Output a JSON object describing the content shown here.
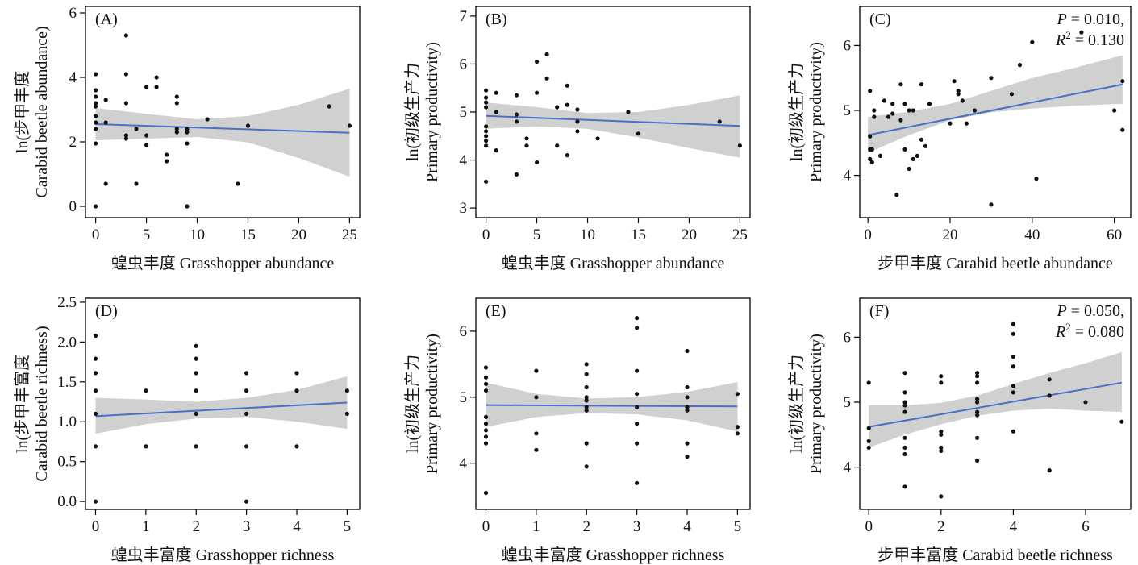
{
  "chart_data": [
    {
      "type": "scatter",
      "panel": "(A)",
      "xlabel": "蝗虫丰度 Grasshopper abundance",
      "ylabel": [
        "ln(步甲丰度",
        "Carabid beetle abundance)"
      ],
      "xlim": [
        -1.0,
        26.0
      ],
      "ylim": [
        -0.35,
        6.2
      ],
      "xticks": [
        0,
        5,
        10,
        15,
        20,
        25
      ],
      "yticks": [
        0,
        2,
        4,
        6
      ],
      "fit": {
        "x": [
          0,
          25
        ],
        "y": [
          2.55,
          2.28
        ]
      },
      "band": {
        "x": [
          0,
          5,
          10,
          15,
          20,
          25
        ],
        "lower": [
          2.05,
          2.1,
          2.15,
          1.98,
          1.5,
          0.92
        ],
        "upper": [
          3.05,
          2.87,
          2.7,
          2.8,
          3.15,
          3.65
        ]
      },
      "stat": null,
      "points": [
        [
          0,
          4.1
        ],
        [
          0,
          3.6
        ],
        [
          0,
          3.4
        ],
        [
          0,
          3.2
        ],
        [
          0,
          3.1
        ],
        [
          0,
          2.8
        ],
        [
          0,
          2.6
        ],
        [
          0,
          2.4
        ],
        [
          0,
          1.95
        ],
        [
          0,
          0.0
        ],
        [
          1,
          3.3
        ],
        [
          1,
          2.6
        ],
        [
          1,
          0.7
        ],
        [
          3,
          5.3
        ],
        [
          3,
          4.1
        ],
        [
          3,
          3.2
        ],
        [
          3,
          2.2
        ],
        [
          3,
          2.1
        ],
        [
          4,
          2.4
        ],
        [
          4,
          0.7
        ],
        [
          5,
          3.7
        ],
        [
          5,
          2.2
        ],
        [
          5,
          1.9
        ],
        [
          6,
          4.0
        ],
        [
          6,
          3.7
        ],
        [
          7,
          1.6
        ],
        [
          7,
          1.4
        ],
        [
          8,
          3.4
        ],
        [
          8,
          3.2
        ],
        [
          8,
          2.4
        ],
        [
          8,
          2.3
        ],
        [
          9,
          2.4
        ],
        [
          9,
          2.3
        ],
        [
          9,
          1.95
        ],
        [
          9,
          0.0
        ],
        [
          11,
          2.7
        ],
        [
          14,
          0.7
        ],
        [
          15,
          2.5
        ],
        [
          23,
          3.1
        ],
        [
          25,
          2.5
        ]
      ]
    },
    {
      "type": "scatter",
      "panel": "(B)",
      "xlabel": "蝗虫丰度 Grasshopper abundance",
      "ylabel": [
        "ln(初级生产力",
        "Primary productivity)"
      ],
      "xlim": [
        -1.0,
        26.0
      ],
      "ylim": [
        2.8,
        7.2
      ],
      "xticks": [
        0,
        5,
        10,
        15,
        20,
        25
      ],
      "yticks": [
        3,
        4,
        5,
        6,
        7
      ],
      "fit": {
        "x": [
          0,
          25
        ],
        "y": [
          4.92,
          4.71
        ]
      },
      "band": {
        "x": [
          0,
          5,
          10,
          15,
          20,
          25
        ],
        "lower": [
          4.65,
          4.7,
          4.65,
          4.47,
          4.25,
          4.05
        ],
        "upper": [
          5.2,
          5.1,
          4.98,
          5.0,
          5.15,
          5.35
        ]
      },
      "stat": null,
      "points": [
        [
          0,
          5.45
        ],
        [
          0,
          5.3
        ],
        [
          0,
          5.2
        ],
        [
          0,
          5.1
        ],
        [
          0,
          4.7
        ],
        [
          0,
          4.6
        ],
        [
          0,
          4.5
        ],
        [
          0,
          4.4
        ],
        [
          0,
          4.3
        ],
        [
          0,
          3.55
        ],
        [
          1,
          5.0
        ],
        [
          1,
          4.2
        ],
        [
          1,
          5.4
        ],
        [
          3,
          5.35
        ],
        [
          3,
          4.95
        ],
        [
          3,
          4.8
        ],
        [
          3,
          3.7
        ],
        [
          4,
          4.45
        ],
        [
          4,
          4.3
        ],
        [
          5,
          6.05
        ],
        [
          5,
          5.4
        ],
        [
          5,
          3.95
        ],
        [
          6,
          6.2
        ],
        [
          6,
          5.7
        ],
        [
          7,
          5.1
        ],
        [
          7,
          4.3
        ],
        [
          8,
          5.55
        ],
        [
          8,
          5.15
        ],
        [
          8,
          4.1
        ],
        [
          9,
          5.05
        ],
        [
          9,
          4.8
        ],
        [
          9,
          4.6
        ],
        [
          11,
          4.45
        ],
        [
          14,
          5.0
        ],
        [
          15,
          4.55
        ],
        [
          23,
          4.8
        ],
        [
          25,
          4.3
        ]
      ]
    },
    {
      "type": "scatter",
      "panel": "(C)",
      "xlabel": "步甲丰度 Carabid beetle abundance",
      "ylabel": [
        "ln(初级生产力",
        "Primary productivity)"
      ],
      "xlim": [
        -2.0,
        64.0
      ],
      "ylim": [
        3.35,
        6.6
      ],
      "xticks": [
        0,
        20,
        40,
        60
      ],
      "yticks": [
        4,
        5,
        6
      ],
      "fit": {
        "x": [
          0,
          62
        ],
        "y": [
          4.62,
          5.4
        ]
      },
      "band": {
        "x": [
          0,
          10,
          20,
          30,
          40,
          50,
          62
        ],
        "lower": [
          4.35,
          4.62,
          4.85,
          4.97,
          5.03,
          5.07,
          5.1
        ],
        "upper": [
          4.9,
          4.98,
          5.1,
          5.3,
          5.5,
          5.65,
          5.85
        ]
      },
      "stat": {
        "p": "= 0.010,",
        "r2": "= 0.130"
      },
      "points": [
        [
          0.5,
          5.3
        ],
        [
          0.5,
          4.6
        ],
        [
          0.5,
          4.4
        ],
        [
          0.5,
          4.25
        ],
        [
          1,
          4.2
        ],
        [
          1,
          4.4
        ],
        [
          1.5,
          4.9
        ],
        [
          1.5,
          5.0
        ],
        [
          3,
          4.3
        ],
        [
          4,
          5.15
        ],
        [
          5,
          4.9
        ],
        [
          6,
          5.1
        ],
        [
          6,
          4.95
        ],
        [
          7,
          3.7
        ],
        [
          8,
          5.4
        ],
        [
          8,
          4.85
        ],
        [
          9,
          5.1
        ],
        [
          9,
          4.4
        ],
        [
          10,
          5.0
        ],
        [
          10,
          4.1
        ],
        [
          11,
          4.25
        ],
        [
          11,
          5.0
        ],
        [
          12,
          4.3
        ],
        [
          13,
          5.4
        ],
        [
          13,
          4.55
        ],
        [
          14,
          4.45
        ],
        [
          15,
          5.1
        ],
        [
          20,
          4.8
        ],
        [
          21,
          5.45
        ],
        [
          22,
          5.3
        ],
        [
          22,
          5.25
        ],
        [
          23,
          5.15
        ],
        [
          24,
          4.8
        ],
        [
          26,
          5.0
        ],
        [
          30,
          5.5
        ],
        [
          30,
          3.55
        ],
        [
          35,
          5.25
        ],
        [
          37,
          5.7
        ],
        [
          40,
          6.05
        ],
        [
          41,
          3.95
        ],
        [
          52,
          6.2
        ],
        [
          60,
          5.0
        ],
        [
          62,
          5.45
        ],
        [
          62,
          4.7
        ]
      ]
    },
    {
      "type": "scatter",
      "panel": "(D)",
      "xlabel": "蝗虫丰富度 Grasshopper richness",
      "ylabel": [
        "ln(步甲丰富度",
        "Carabid beetle richness)"
      ],
      "xlim": [
        -0.2,
        5.25
      ],
      "ylim": [
        -0.1,
        2.55
      ],
      "xticks": [
        0,
        1,
        2,
        3,
        4,
        5
      ],
      "yticks": [
        0,
        0.5,
        1.0,
        1.5,
        2.0,
        2.5
      ],
      "ytickfmt": 1,
      "fit": {
        "x": [
          0,
          5
        ],
        "y": [
          1.07,
          1.24
        ]
      },
      "band": {
        "x": [
          0,
          1,
          2,
          3,
          4,
          5
        ],
        "lower": [
          0.85,
          0.97,
          1.04,
          1.06,
          1.0,
          0.91
        ],
        "upper": [
          1.3,
          1.28,
          1.25,
          1.3,
          1.4,
          1.57
        ]
      },
      "stat": null,
      "points": [
        [
          0,
          2.08
        ],
        [
          0,
          1.79
        ],
        [
          0,
          1.61
        ],
        [
          0,
          1.39
        ],
        [
          0,
          1.1
        ],
        [
          0,
          0.69
        ],
        [
          0,
          0.0
        ],
        [
          1,
          1.39
        ],
        [
          1,
          0.69
        ],
        [
          2,
          1.95
        ],
        [
          2,
          1.79
        ],
        [
          2,
          1.61
        ],
        [
          2,
          1.39
        ],
        [
          2,
          1.1
        ],
        [
          2,
          0.69
        ],
        [
          3,
          1.61
        ],
        [
          3,
          1.39
        ],
        [
          3,
          1.1
        ],
        [
          3,
          0.69
        ],
        [
          3,
          0.0
        ],
        [
          4,
          1.61
        ],
        [
          4,
          1.39
        ],
        [
          4,
          0.69
        ],
        [
          5,
          1.39
        ],
        [
          5,
          1.1
        ]
      ]
    },
    {
      "type": "scatter",
      "panel": "(E)",
      "xlabel": "蝗虫丰富度 Grasshopper richness",
      "ylabel": [
        "ln(初级生产力",
        "Primary productivity)"
      ],
      "xlim": [
        -0.2,
        5.25
      ],
      "ylim": [
        3.3,
        6.5
      ],
      "xticks": [
        0,
        1,
        2,
        3,
        4,
        5
      ],
      "yticks": [
        4,
        5,
        6
      ],
      "fit": {
        "x": [
          0,
          5
        ],
        "y": [
          4.88,
          4.86
        ]
      },
      "band": {
        "x": [
          0,
          1,
          2,
          3,
          4,
          5
        ],
        "lower": [
          4.55,
          4.7,
          4.76,
          4.74,
          4.65,
          4.48
        ],
        "upper": [
          5.22,
          5.05,
          4.98,
          5.0,
          5.08,
          5.23
        ]
      },
      "stat": null,
      "points": [
        [
          0,
          5.45
        ],
        [
          0,
          5.3
        ],
        [
          0,
          5.2
        ],
        [
          0,
          5.1
        ],
        [
          0,
          4.7
        ],
        [
          0,
          4.6
        ],
        [
          0,
          4.5
        ],
        [
          0,
          4.4
        ],
        [
          0,
          4.3
        ],
        [
          0,
          3.55
        ],
        [
          1,
          5.4
        ],
        [
          1,
          5.0
        ],
        [
          1,
          4.45
        ],
        [
          1,
          4.2
        ],
        [
          2,
          5.5
        ],
        [
          2,
          5.35
        ],
        [
          2,
          5.15
        ],
        [
          2,
          5.0
        ],
        [
          2,
          4.95
        ],
        [
          2,
          4.85
        ],
        [
          2,
          4.8
        ],
        [
          2,
          4.3
        ],
        [
          2,
          3.95
        ],
        [
          3,
          6.2
        ],
        [
          3,
          6.05
        ],
        [
          3,
          5.4
        ],
        [
          3,
          5.05
        ],
        [
          3,
          4.85
        ],
        [
          3,
          4.6
        ],
        [
          3,
          4.3
        ],
        [
          3,
          3.7
        ],
        [
          4,
          5.7
        ],
        [
          4,
          5.15
        ],
        [
          4,
          5.0
        ],
        [
          4,
          4.85
        ],
        [
          4,
          4.8
        ],
        [
          4,
          4.3
        ],
        [
          4,
          4.1
        ],
        [
          5,
          5.05
        ],
        [
          5,
          4.55
        ],
        [
          5,
          4.45
        ]
      ]
    },
    {
      "type": "scatter",
      "panel": "(F)",
      "xlabel": "步甲丰富度 Carabid beetle richness",
      "ylabel": [
        "ln(初级生产力",
        "Primary productivity)"
      ],
      "xlim": [
        -0.25,
        7.25
      ],
      "ylim": [
        3.35,
        6.6
      ],
      "xticks": [
        0,
        2,
        4,
        6
      ],
      "yticks": [
        4,
        5,
        6
      ],
      "fit": {
        "x": [
          0,
          7
        ],
        "y": [
          4.62,
          5.3
        ]
      },
      "band": {
        "x": [
          0,
          1,
          2,
          3,
          4,
          5,
          6,
          7
        ],
        "lower": [
          4.3,
          4.5,
          4.66,
          4.79,
          4.87,
          4.9,
          4.87,
          4.85
        ],
        "upper": [
          4.95,
          4.95,
          4.99,
          5.1,
          5.28,
          5.45,
          5.6,
          5.77
        ]
      },
      "stat": {
        "p": "= 0.050,",
        "r2": "= 0.080"
      },
      "points": [
        [
          0,
          5.3
        ],
        [
          0,
          4.6
        ],
        [
          0,
          4.4
        ],
        [
          0,
          4.3
        ],
        [
          1,
          5.45
        ],
        [
          1,
          5.15
        ],
        [
          1,
          5.0
        ],
        [
          1,
          4.95
        ],
        [
          1,
          4.85
        ],
        [
          1,
          4.45
        ],
        [
          1,
          4.3
        ],
        [
          1,
          4.2
        ],
        [
          1,
          3.7
        ],
        [
          2,
          5.4
        ],
        [
          2,
          5.3
        ],
        [
          2,
          4.55
        ],
        [
          2,
          4.5
        ],
        [
          2,
          4.3
        ],
        [
          2,
          4.25
        ],
        [
          2,
          3.55
        ],
        [
          3,
          5.45
        ],
        [
          3,
          5.4
        ],
        [
          3,
          5.3
        ],
        [
          3,
          5.05
        ],
        [
          3,
          5.0
        ],
        [
          3,
          4.85
        ],
        [
          3,
          4.8
        ],
        [
          3,
          4.45
        ],
        [
          3,
          4.1
        ],
        [
          4,
          6.2
        ],
        [
          4,
          6.05
        ],
        [
          4,
          5.7
        ],
        [
          4,
          5.55
        ],
        [
          4,
          5.25
        ],
        [
          4,
          5.15
        ],
        [
          4,
          4.55
        ],
        [
          5,
          5.35
        ],
        [
          5,
          5.1
        ],
        [
          5,
          3.95
        ],
        [
          6,
          5.0
        ],
        [
          7,
          4.7
        ]
      ]
    }
  ]
}
